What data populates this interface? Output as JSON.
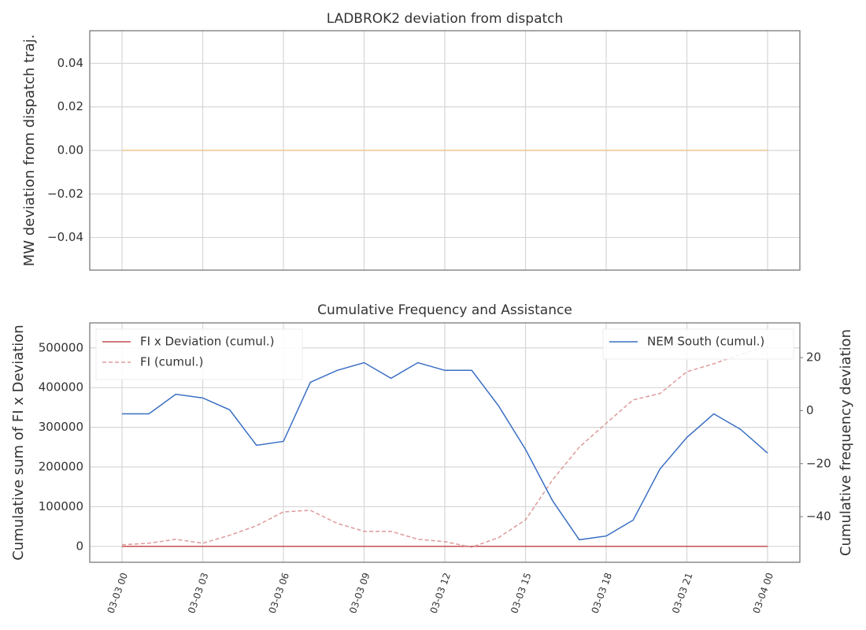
{
  "chart_data": [
    {
      "type": "line",
      "title": "LADBROK2 deviation from dispatch",
      "ylabel": "MW deviation from dispatch traj.",
      "x": [
        "03-03 00",
        "03-03 01",
        "03-03 02",
        "03-03 03",
        "03-03 04",
        "03-03 05",
        "03-03 06",
        "03-03 07",
        "03-03 08",
        "03-03 09",
        "03-03 10",
        "03-03 11",
        "03-03 12",
        "03-03 13",
        "03-03 14",
        "03-03 15",
        "03-03 16",
        "03-03 17",
        "03-03 18",
        "03-03 19",
        "03-03 20",
        "03-03 21",
        "03-03 22",
        "03-03 23",
        "03-04 00"
      ],
      "values": [
        0,
        0,
        0,
        0,
        0,
        0,
        0,
        0,
        0,
        0,
        0,
        0,
        0,
        0,
        0,
        0,
        0,
        0,
        0,
        0,
        0,
        0,
        0,
        0,
        0
      ],
      "color": "#f2c894",
      "ylim": [
        -0.055,
        0.055
      ],
      "yticks": [
        {
          "value": -0.04,
          "label": "−0.04"
        },
        {
          "value": -0.02,
          "label": "−0.02"
        },
        {
          "value": 0,
          "label": "0.00"
        },
        0.02,
        0.04
      ],
      "xticks": [
        "03-03 00",
        "03-03 03",
        "03-03 06",
        "03-03 09",
        "03-03 12",
        "03-03 15",
        "03-03 18",
        "03-03 21",
        "03-04 00"
      ],
      "show_xtick_labels": false,
      "grid": true
    },
    {
      "type": "line",
      "title": "Cumulative Frequency and Assistance",
      "ylabel": "Cumulative sum of FI x Deviation",
      "y2label": "Cumulative frequency deviation",
      "x": [
        "03-03 00",
        "03-03 01",
        "03-03 02",
        "03-03 03",
        "03-03 04",
        "03-03 05",
        "03-03 06",
        "03-03 07",
        "03-03 08",
        "03-03 09",
        "03-03 10",
        "03-03 11",
        "03-03 12",
        "03-03 13",
        "03-03 14",
        "03-03 15",
        "03-03 16",
        "03-03 17",
        "03-03 18",
        "03-03 19",
        "03-03 20",
        "03-03 21",
        "03-03 22",
        "03-03 23",
        "03-04 00"
      ],
      "series": [
        {
          "name": "FI x Deviation (cumul.)",
          "color": "#c44e52",
          "values": [
            0,
            0,
            0,
            0,
            0,
            0,
            0,
            0,
            0,
            0,
            0,
            0,
            0,
            0,
            0,
            0,
            0,
            0,
            0,
            0,
            0,
            0,
            0,
            0,
            0
          ]
        },
        {
          "name": "FI (cumul.)",
          "color": "#dd9a9a",
          "dash": true,
          "values": [
            4000,
            8000,
            18000,
            8000,
            28000,
            52000,
            87000,
            91000,
            58000,
            38000,
            38000,
            18000,
            12000,
            -2000,
            22000,
            67000,
            167000,
            250000,
            310000,
            369000,
            385000,
            440000,
            460000,
            484000,
            504000
          ]
        },
        {
          "name": "NEM South (cumul.)",
          "color": "#3a6fc4",
          "axis": "y2",
          "values": [
            -1.2,
            -1.2,
            6.2,
            4.8,
            0.3,
            -13.1,
            -11.6,
            10.7,
            15.2,
            18.1,
            12.2,
            18.1,
            15.2,
            15.2,
            1.8,
            -14.6,
            -33.9,
            -48.7,
            -47.3,
            -41.3,
            -22.0,
            -10.1,
            -1.2,
            -7.1,
            -16.0
          ]
        }
      ],
      "ylim": [
        -40000,
        563000
      ],
      "yticks": [
        0,
        100000,
        200000,
        300000,
        400000,
        500000
      ],
      "y2lim": [
        -57.2,
        33.1
      ],
      "y2ticks": [
        {
          "value": -40,
          "label": "−40"
        },
        {
          "value": -20,
          "label": "−20"
        },
        0,
        20
      ],
      "xticks": [
        "03-03 00",
        "03-03 03",
        "03-03 06",
        "03-03 09",
        "03-03 12",
        "03-03 15",
        "03-03 18",
        "03-03 21",
        "03-04 00"
      ],
      "show_xtick_labels": true,
      "grid": true,
      "legend_loc": "upper left",
      "legend2_loc": "upper right"
    }
  ]
}
